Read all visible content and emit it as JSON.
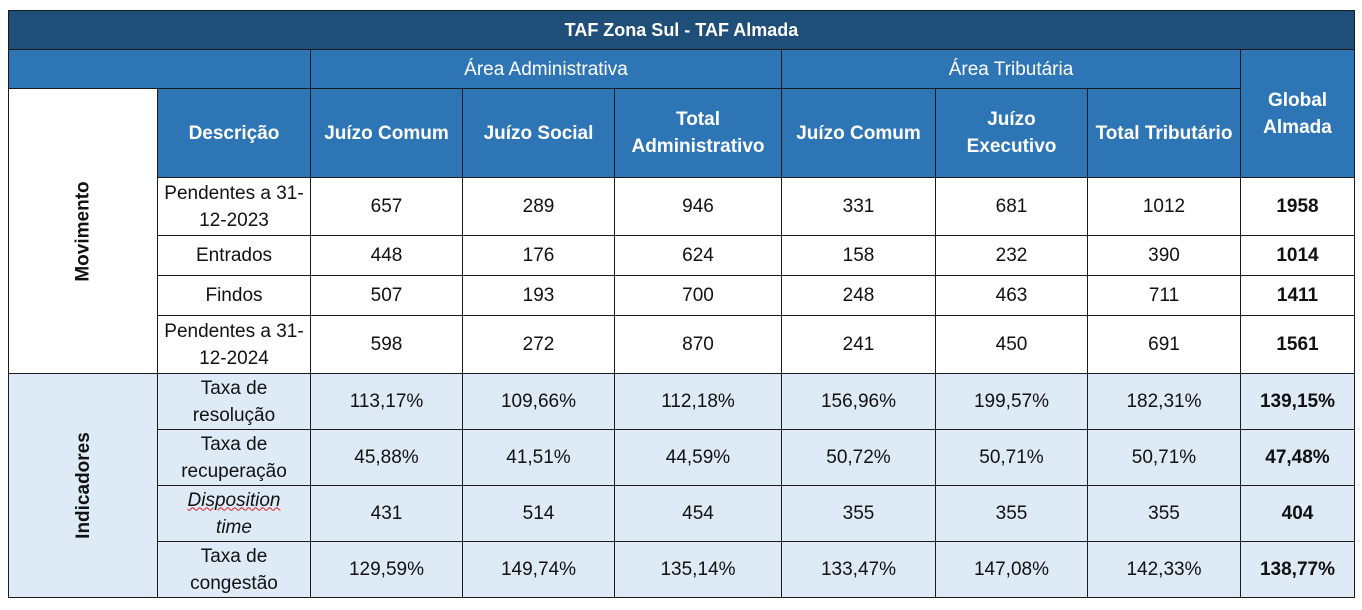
{
  "title": "TAF Zona Sul - TAF Almada",
  "sections": {
    "administrativa": "Área Administrativa",
    "tributaria": "Área Tributária",
    "global": "Global Almada"
  },
  "columns": {
    "descricao": "Descrição",
    "adm_comum": "Juízo Comum",
    "adm_social": "Juízo Social",
    "adm_total": "Total Administrativo",
    "trib_comum": "Juízo Comum",
    "trib_exec": "Juízo Executivo",
    "trib_total": "Total Tributário"
  },
  "groups": {
    "movimento": "Movimento",
    "indicadores": "Indicadores"
  },
  "movimento_rows": [
    {
      "label": "Pendentes a 31-12-2023",
      "values": [
        "657",
        "289",
        "946",
        "331",
        "681",
        "1012"
      ],
      "global": "1958"
    },
    {
      "label": "Entrados",
      "values": [
        "448",
        "176",
        "624",
        "158",
        "232",
        "390"
      ],
      "global": "1014"
    },
    {
      "label": "Findos",
      "values": [
        "507",
        "193",
        "700",
        "248",
        "463",
        "711"
      ],
      "global": "1411"
    },
    {
      "label": "Pendentes a 31-12-2024",
      "values": [
        "598",
        "272",
        "870",
        "241",
        "450",
        "691"
      ],
      "global": "1561"
    }
  ],
  "indicadores_rows": [
    {
      "label": "Taxa de resolução",
      "values": [
        "113,17%",
        "109,66%",
        "112,18%",
        "156,96%",
        "199,57%",
        "182,31%"
      ],
      "global": "139,15%"
    },
    {
      "label": "Taxa de recuperação",
      "values": [
        "45,88%",
        "41,51%",
        "44,59%",
        "50,72%",
        "50,71%",
        "50,71%"
      ],
      "global": "47,48%"
    },
    {
      "label_a": "Disposition",
      "label_b": "time",
      "values": [
        "431",
        "514",
        "454",
        "355",
        "355",
        "355"
      ],
      "global": "404"
    },
    {
      "label": "Taxa de congestão",
      "values": [
        "129,59%",
        "149,74%",
        "135,14%",
        "133,47%",
        "147,08%",
        "142,33%"
      ],
      "global": "138,77%"
    }
  ]
}
